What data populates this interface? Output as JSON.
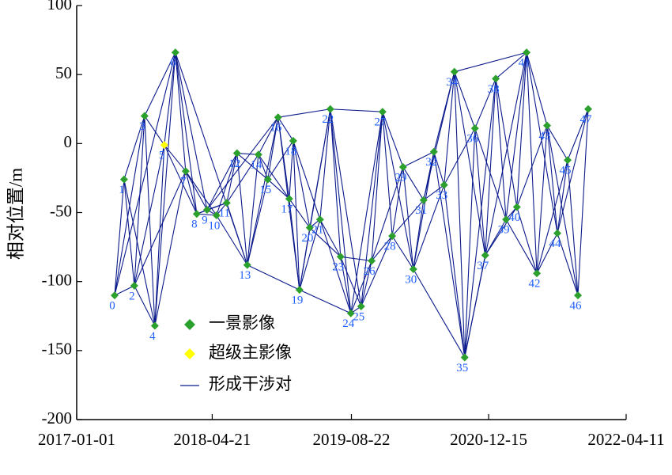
{
  "chart_data": {
    "type": "network",
    "y_label": "相对位置/m",
    "xlim": [
      "2017-01-01",
      "2022-04-11"
    ],
    "xticks": [
      "2017-01-01",
      "2018-04-21",
      "2019-08-22",
      "2020-12-15",
      "2022-04-11"
    ],
    "ylim": [
      -200,
      100
    ],
    "yticks": [
      -200,
      -150,
      -100,
      -50,
      0,
      50,
      100
    ],
    "series": [
      {
        "name": "一景影像",
        "color": "#2ca02c",
        "labels": [
          0,
          1,
          2,
          3,
          4,
          6,
          7,
          8,
          9,
          10,
          11,
          12,
          13,
          14,
          15,
          16,
          17,
          18,
          19,
          20,
          21,
          22,
          23,
          24,
          25,
          26,
          27,
          28,
          29,
          30,
          31,
          32,
          33,
          34,
          35,
          36,
          37,
          38,
          39,
          40,
          41,
          42,
          43,
          44,
          45,
          46,
          47
        ],
        "x": [
          "2017-05-14",
          "2017-06-16",
          "2017-07-22",
          "2017-08-27",
          "2017-10-02",
          "2017-12-13",
          "2018-01-18",
          "2018-02-26",
          "2018-04-03",
          "2018-05-06",
          "2018-06-11",
          "2018-07-17",
          "2018-08-22",
          "2018-09-30",
          "2018-11-02",
          "2018-12-08",
          "2019-01-16",
          "2019-01-30",
          "2019-02-21",
          "2019-03-29",
          "2019-05-04",
          "2019-06-09",
          "2019-07-15",
          "2019-08-20",
          "2019-09-25",
          "2019-11-01",
          "2019-12-09",
          "2020-01-12",
          "2020-02-19",
          "2020-03-26",
          "2020-05-01",
          "2020-06-06",
          "2020-07-12",
          "2020-08-17",
          "2020-09-22",
          "2020-10-28",
          "2020-12-03",
          "2021-01-09",
          "2021-02-14",
          "2021-03-24",
          "2021-04-27",
          "2021-06-02",
          "2021-07-08",
          "2021-08-13",
          "2021-09-18",
          "2021-10-24",
          "2021-11-29"
        ],
        "values": [
          -110,
          -26,
          -103,
          20,
          -132,
          66,
          -20,
          -51,
          -48,
          -52,
          -43,
          -7,
          -88,
          -8,
          -26,
          19,
          -40,
          2,
          -106,
          -61,
          -55,
          25,
          -82,
          -123,
          -118,
          -85,
          23,
          -67,
          -17,
          -91,
          -41,
          -6,
          -30,
          52,
          -155,
          11,
          -81,
          47,
          -55,
          -46,
          66,
          -94,
          13,
          -65,
          -12,
          -110,
          25
        ]
      },
      {
        "name": "超级主影像",
        "color": "#ffff00",
        "labels": [
          5
        ],
        "x": [
          "2017-11-04"
        ],
        "values": [
          -1
        ]
      }
    ],
    "network": {
      "name": "形成干涉对",
      "color": "#0b1a8c",
      "pairs": [
        [
          0,
          1
        ],
        [
          0,
          2
        ],
        [
          0,
          3
        ],
        [
          1,
          2
        ],
        [
          1,
          3
        ],
        [
          1,
          4
        ],
        [
          2,
          3
        ],
        [
          2,
          4
        ],
        [
          2,
          5
        ],
        [
          3,
          4
        ],
        [
          3,
          5
        ],
        [
          3,
          6
        ],
        [
          4,
          5
        ],
        [
          4,
          6
        ],
        [
          4,
          7
        ],
        [
          5,
          6
        ],
        [
          5,
          7
        ],
        [
          5,
          8
        ],
        [
          6,
          7
        ],
        [
          6,
          8
        ],
        [
          6,
          9
        ],
        [
          7,
          8
        ],
        [
          7,
          9
        ],
        [
          7,
          10
        ],
        [
          8,
          9
        ],
        [
          8,
          10
        ],
        [
          8,
          11
        ],
        [
          9,
          10
        ],
        [
          9,
          11
        ],
        [
          9,
          12
        ],
        [
          10,
          11
        ],
        [
          10,
          12
        ],
        [
          10,
          13
        ],
        [
          11,
          12
        ],
        [
          11,
          13
        ],
        [
          11,
          14
        ],
        [
          12,
          13
        ],
        [
          12,
          14
        ],
        [
          12,
          15
        ],
        [
          13,
          14
        ],
        [
          13,
          15
        ],
        [
          13,
          16
        ],
        [
          14,
          15
        ],
        [
          14,
          16
        ],
        [
          14,
          17
        ],
        [
          15,
          16
        ],
        [
          15,
          17
        ],
        [
          15,
          18
        ],
        [
          16,
          17
        ],
        [
          16,
          18
        ],
        [
          16,
          19
        ],
        [
          17,
          18
        ],
        [
          17,
          19
        ],
        [
          17,
          20
        ],
        [
          18,
          19
        ],
        [
          18,
          20
        ],
        [
          18,
          21
        ],
        [
          19,
          20
        ],
        [
          19,
          21
        ],
        [
          19,
          22
        ],
        [
          20,
          21
        ],
        [
          20,
          22
        ],
        [
          20,
          23
        ],
        [
          21,
          22
        ],
        [
          21,
          23
        ],
        [
          21,
          24
        ],
        [
          22,
          23
        ],
        [
          22,
          24
        ],
        [
          22,
          25
        ],
        [
          23,
          24
        ],
        [
          23,
          25
        ],
        [
          23,
          26
        ],
        [
          24,
          25
        ],
        [
          24,
          26
        ],
        [
          24,
          27
        ],
        [
          25,
          26
        ],
        [
          25,
          27
        ],
        [
          25,
          28
        ],
        [
          26,
          27
        ],
        [
          26,
          28
        ],
        [
          26,
          29
        ],
        [
          27,
          28
        ],
        [
          27,
          29
        ],
        [
          27,
          30
        ],
        [
          28,
          29
        ],
        [
          28,
          30
        ],
        [
          28,
          31
        ],
        [
          29,
          30
        ],
        [
          29,
          31
        ],
        [
          29,
          32
        ],
        [
          30,
          31
        ],
        [
          30,
          32
        ],
        [
          30,
          33
        ],
        [
          31,
          32
        ],
        [
          31,
          33
        ],
        [
          31,
          34
        ],
        [
          32,
          33
        ],
        [
          32,
          34
        ],
        [
          32,
          35
        ],
        [
          33,
          34
        ],
        [
          33,
          35
        ],
        [
          33,
          36
        ],
        [
          34,
          35
        ],
        [
          34,
          36
        ],
        [
          34,
          37
        ],
        [
          35,
          36
        ],
        [
          35,
          37
        ],
        [
          35,
          38
        ],
        [
          36,
          37
        ],
        [
          36,
          38
        ],
        [
          36,
          39
        ],
        [
          37,
          38
        ],
        [
          37,
          39
        ],
        [
          37,
          40
        ],
        [
          38,
          39
        ],
        [
          38,
          40
        ],
        [
          38,
          41
        ],
        [
          39,
          40
        ],
        [
          39,
          41
        ],
        [
          39,
          42
        ],
        [
          40,
          41
        ],
        [
          40,
          42
        ],
        [
          40,
          43
        ],
        [
          41,
          42
        ],
        [
          41,
          43
        ],
        [
          41,
          44
        ],
        [
          42,
          43
        ],
        [
          42,
          44
        ],
        [
          42,
          45
        ],
        [
          43,
          44
        ],
        [
          43,
          45
        ],
        [
          43,
          46
        ],
        [
          44,
          45
        ],
        [
          44,
          46
        ],
        [
          44,
          47
        ],
        [
          45,
          46
        ],
        [
          45,
          47
        ],
        [
          46,
          47
        ],
        [
          0,
          6
        ],
        [
          6,
          13
        ],
        [
          16,
          22
        ],
        [
          22,
          27
        ],
        [
          13,
          19
        ],
        [
          19,
          24
        ],
        [
          34,
          41
        ],
        [
          35,
          41
        ],
        [
          30,
          35
        ],
        [
          2,
          7
        ],
        [
          9,
          16
        ]
      ]
    }
  }
}
